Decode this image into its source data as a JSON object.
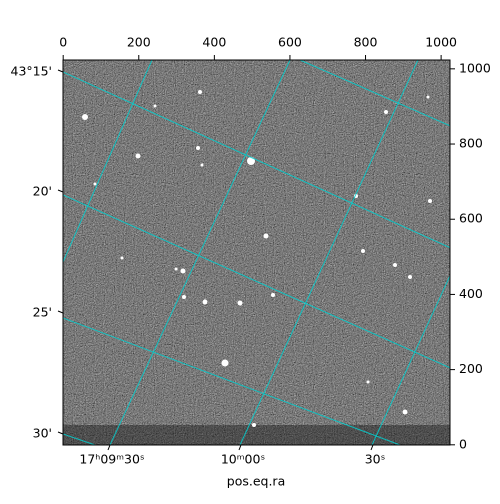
{
  "chart_data": {
    "type": "image",
    "xlabel": "pos.eq.ra",
    "xlim": [
      -0.5,
      1023.5
    ],
    "xticks": [
      0,
      200,
      400,
      600,
      800,
      1000
    ],
    "ylim": [
      -0.5,
      1023.5
    ],
    "yticks": [
      0,
      200,
      400,
      600,
      800,
      1000
    ],
    "grid_color": "#00d0d0",
    "dec_tick_labels": [
      "43°15'",
      "20'",
      "25'",
      "30'"
    ],
    "ra_tick_labels": [
      "17ʰ09ᵐ30ˢ",
      "10ᵐ00ˢ",
      "30ˢ"
    ]
  }
}
